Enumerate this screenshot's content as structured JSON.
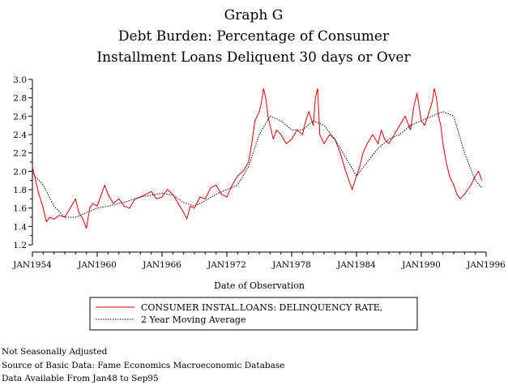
{
  "chart_data": {
    "type": "line",
    "title": "Graph G",
    "subtitle": [
      "Debt Burden: Percentage of Consumer",
      "Installment Loans Deliquent 30 days or Over"
    ],
    "xlabel": "Date of Observation",
    "ylabel": "",
    "x_tick_labels": [
      "JAN1954",
      "JAN1960",
      "JAN1966",
      "JAN1972",
      "JAN1978",
      "JAN1984",
      "JAN1990",
      "JAN1996"
    ],
    "x_ticks": [
      1954,
      1960,
      1966,
      1972,
      1978,
      1984,
      1990,
      1996
    ],
    "xlim": [
      1954,
      1996
    ],
    "y_tick_labels": [
      "1.2",
      "1.4",
      "1.6",
      "1.8",
      "2.0",
      "2.2",
      "2.4",
      "2.6",
      "2.8",
      "3.0"
    ],
    "y_ticks": [
      1.2,
      1.4,
      1.6,
      1.8,
      2.0,
      2.2,
      2.4,
      2.6,
      2.8,
      3.0
    ],
    "ylim": [
      1.2,
      3.0
    ],
    "grid": false,
    "legend_position": "bottom",
    "series": [
      {
        "name": "CONSUMER INSTAL.LOANS: DELINQUENCY RATE,",
        "color": "#e00000",
        "style": "solid",
        "x": [
          1954.0,
          1954.3,
          1954.6,
          1955.0,
          1955.3,
          1955.6,
          1956.0,
          1956.5,
          1957.0,
          1957.5,
          1958.0,
          1958.3,
          1958.6,
          1959.0,
          1959.3,
          1959.6,
          1960.0,
          1960.3,
          1960.7,
          1961.0,
          1961.5,
          1962.0,
          1962.5,
          1963.0,
          1963.5,
          1964.0,
          1964.5,
          1965.0,
          1965.5,
          1966.0,
          1966.5,
          1967.0,
          1967.5,
          1968.0,
          1968.3,
          1968.6,
          1969.0,
          1969.5,
          1970.0,
          1970.5,
          1971.0,
          1971.5,
          1972.0,
          1972.5,
          1973.0,
          1973.5,
          1974.0,
          1974.3,
          1974.6,
          1975.0,
          1975.2,
          1975.4,
          1975.6,
          1975.8,
          1976.0,
          1976.3,
          1976.6,
          1977.0,
          1977.5,
          1978.0,
          1978.5,
          1979.0,
          1979.3,
          1979.6,
          1980.0,
          1980.2,
          1980.4,
          1980.6,
          1981.0,
          1981.5,
          1982.0,
          1982.5,
          1983.0,
          1983.3,
          1983.6,
          1984.0,
          1984.3,
          1984.6,
          1985.0,
          1985.5,
          1986.0,
          1986.3,
          1986.6,
          1987.0,
          1987.5,
          1988.0,
          1988.5,
          1989.0,
          1989.3,
          1989.6,
          1990.0,
          1990.3,
          1990.6,
          1991.0,
          1991.2,
          1991.4,
          1991.6,
          1991.8,
          1992.0,
          1992.3,
          1992.6,
          1993.0,
          1993.3,
          1993.6,
          1994.0,
          1994.3,
          1994.6,
          1995.0,
          1995.3,
          1995.6
        ],
        "y": [
          2.05,
          1.9,
          1.75,
          1.6,
          1.45,
          1.5,
          1.48,
          1.52,
          1.5,
          1.6,
          1.7,
          1.55,
          1.5,
          1.38,
          1.6,
          1.65,
          1.62,
          1.72,
          1.85,
          1.75,
          1.65,
          1.7,
          1.62,
          1.6,
          1.7,
          1.72,
          1.75,
          1.78,
          1.7,
          1.72,
          1.8,
          1.75,
          1.65,
          1.55,
          1.48,
          1.62,
          1.6,
          1.72,
          1.7,
          1.82,
          1.85,
          1.75,
          1.72,
          1.85,
          1.95,
          2.0,
          2.1,
          2.3,
          2.55,
          2.65,
          2.75,
          2.9,
          2.8,
          2.6,
          2.5,
          2.35,
          2.45,
          2.4,
          2.3,
          2.35,
          2.45,
          2.4,
          2.55,
          2.65,
          2.5,
          2.8,
          2.9,
          2.4,
          2.3,
          2.4,
          2.35,
          2.2,
          2.0,
          1.9,
          1.8,
          1.95,
          2.05,
          2.2,
          2.3,
          2.4,
          2.3,
          2.45,
          2.35,
          2.3,
          2.4,
          2.5,
          2.6,
          2.45,
          2.7,
          2.85,
          2.55,
          2.5,
          2.6,
          2.75,
          2.9,
          2.8,
          2.6,
          2.5,
          2.3,
          2.1,
          1.95,
          1.85,
          1.75,
          1.7,
          1.75,
          1.8,
          1.85,
          1.95,
          2.0,
          1.9
        ]
      },
      {
        "name": "2 Year Moving Average",
        "color": "#000000",
        "style": "dotted",
        "x": [
          1954.0,
          1955.0,
          1956.0,
          1957.0,
          1958.0,
          1959.0,
          1960.0,
          1961.0,
          1962.0,
          1963.0,
          1964.0,
          1965.0,
          1966.0,
          1967.0,
          1968.0,
          1969.0,
          1970.0,
          1971.0,
          1972.0,
          1973.0,
          1974.0,
          1975.0,
          1976.0,
          1977.0,
          1978.0,
          1979.0,
          1980.0,
          1981.0,
          1982.0,
          1983.0,
          1984.0,
          1985.0,
          1986.0,
          1987.0,
          1988.0,
          1989.0,
          1990.0,
          1991.0,
          1992.0,
          1993.0,
          1994.0,
          1995.0,
          1995.6
        ],
        "y": [
          1.98,
          1.85,
          1.62,
          1.5,
          1.5,
          1.55,
          1.6,
          1.62,
          1.65,
          1.68,
          1.72,
          1.74,
          1.76,
          1.74,
          1.66,
          1.62,
          1.68,
          1.75,
          1.8,
          1.85,
          2.05,
          2.4,
          2.6,
          2.55,
          2.45,
          2.45,
          2.55,
          2.5,
          2.35,
          2.15,
          1.95,
          2.1,
          2.25,
          2.35,
          2.4,
          2.5,
          2.55,
          2.6,
          2.65,
          2.6,
          2.2,
          1.9,
          1.82
        ]
      }
    ]
  },
  "legend": {
    "line1": "CONSUMER INSTAL.LOANS: DELINQUENCY RATE,",
    "line2": "2 Year Moving Average"
  },
  "footnotes": {
    "line1": "Not Seasonally Adjusted",
    "line2": "Source of Basic Data: Fame Economics Macroeconomic Database",
    "line3": "Data Available From Jan48 to Sep95"
  }
}
